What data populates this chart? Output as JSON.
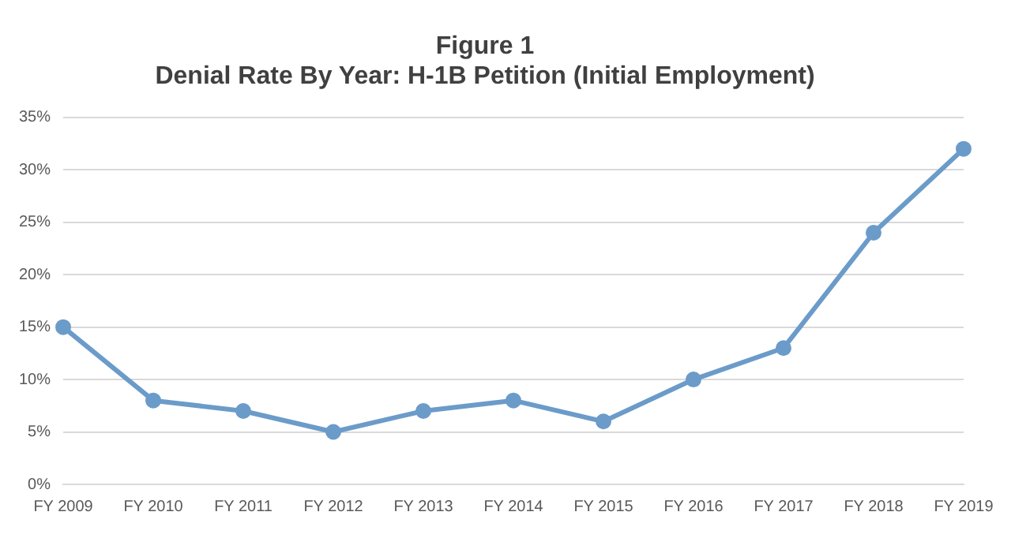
{
  "chart_data": {
    "type": "line",
    "title": "Figure 1",
    "subtitle": "Denial Rate By Year: H-1B Petition (Initial Employment)",
    "categories": [
      "FY 2009",
      "FY 2010",
      "FY 2011",
      "FY 2012",
      "FY 2013",
      "FY 2014",
      "FY 2015",
      "FY 2016",
      "FY 2017",
      "FY 2018",
      "FY 2019"
    ],
    "series": [
      {
        "color": "#6b9bc9",
        "values": [
          15,
          8,
          7,
          5,
          7,
          8,
          6,
          10,
          13,
          24,
          32
        ]
      }
    ],
    "ylim": [
      0,
      35
    ],
    "yticks": [
      {
        "value": 0,
        "label": "0%"
      },
      {
        "value": 5,
        "label": "5%"
      },
      {
        "value": 10,
        "label": "10%"
      },
      {
        "value": 15,
        "label": "15%"
      },
      {
        "value": 20,
        "label": "20%"
      },
      {
        "value": 25,
        "label": "25%"
      },
      {
        "value": 30,
        "label": "30%"
      },
      {
        "value": 35,
        "label": "35%"
      }
    ],
    "grid": "y",
    "legend": false,
    "marker": "circle",
    "line_style": "solid"
  }
}
